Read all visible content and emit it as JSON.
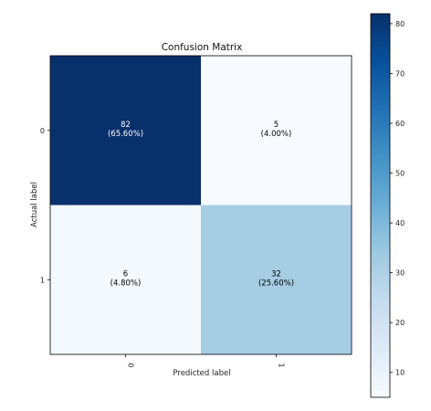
{
  "chart_data": {
    "type": "heatmap",
    "title": "Confusion Matrix",
    "xlabel": "Predicted label",
    "ylabel": "Actual label",
    "x_categories": [
      "0",
      "1"
    ],
    "y_categories": [
      "0",
      "1"
    ],
    "values": [
      [
        82,
        5
      ],
      [
        6,
        32
      ]
    ],
    "cell_labels": [
      [
        {
          "count": "82",
          "percent": "(65.60%)"
        },
        {
          "count": "5",
          "percent": "(4.00%)"
        }
      ],
      [
        {
          "count": "6",
          "percent": "(4.80%)"
        },
        {
          "count": "32",
          "percent": "(25.60%)"
        }
      ]
    ],
    "colormap": "Blues",
    "colorbar": {
      "range": [
        5,
        82
      ],
      "ticks": [
        "10",
        "20",
        "30",
        "40",
        "50",
        "60",
        "70",
        "80"
      ]
    },
    "grid": false
  },
  "colors": {
    "cmap_low": "#f7fbff",
    "cmap_mid": "#9ecae1",
    "cmap_high": "#08306b",
    "text_dark": "#000000",
    "text_light": "#ffffff"
  }
}
